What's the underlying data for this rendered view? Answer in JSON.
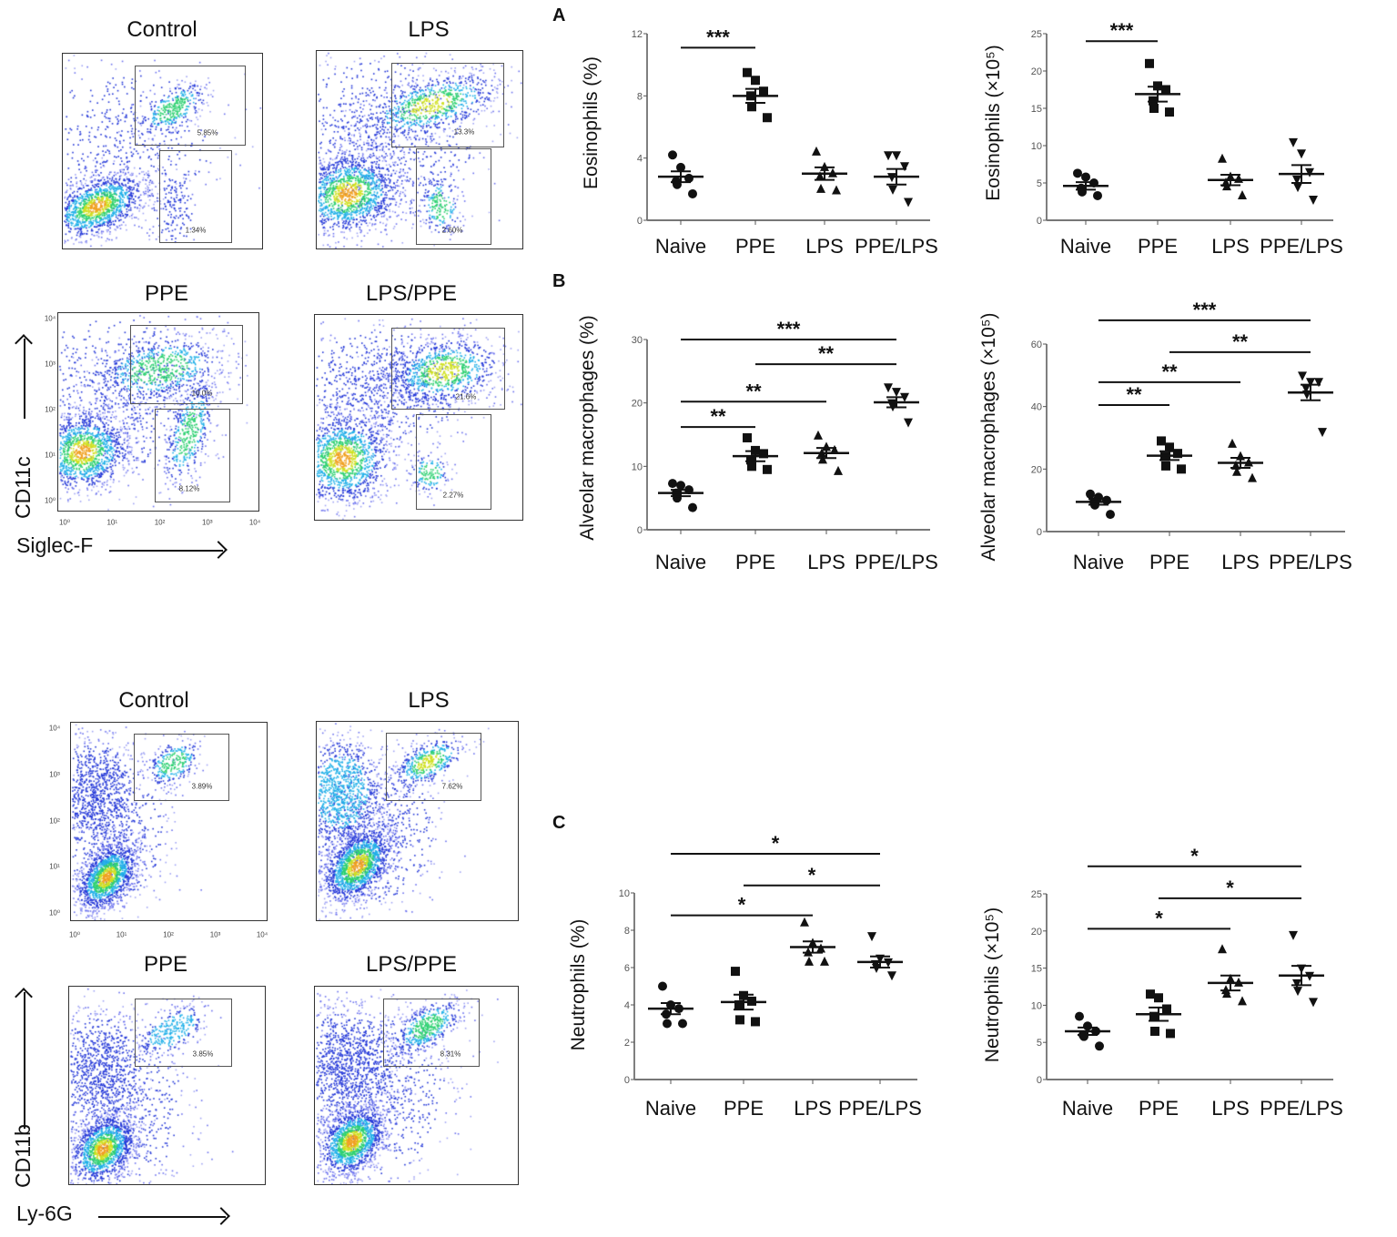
{
  "flow_top": {
    "panels": [
      {
        "title": "Control",
        "gates": [
          "5.85%",
          "1.34%"
        ]
      },
      {
        "title": "LPS",
        "gates": [
          "13.3%",
          "2.60%"
        ]
      },
      {
        "title": "PPE",
        "gates": [
          "10.0%",
          "8.12%"
        ]
      },
      {
        "title": "LPS/PPE",
        "gates": [
          "21.6%",
          "2.27%"
        ]
      }
    ],
    "y_axis_label": "CD11c",
    "x_axis_label": "Siglec-F",
    "x_ticks": [
      "10⁰",
      "10¹",
      "10²",
      "10³",
      "10⁴"
    ],
    "y_ticks": [
      "10⁴",
      "10³",
      "10²",
      "10¹",
      "10⁰"
    ]
  },
  "flow_bottom": {
    "panels": [
      {
        "title": "Control",
        "gates": [
          "3.89%"
        ]
      },
      {
        "title": "LPS",
        "gates": [
          "7.62%"
        ]
      },
      {
        "title": "PPE",
        "gates": [
          "3.85%"
        ]
      },
      {
        "title": "LPS/PPE",
        "gates": [
          "8.31%"
        ]
      }
    ],
    "y_axis_label": "CD11b",
    "x_axis_label": "Ly-6G",
    "x_ticks": [
      "10⁰",
      "10¹",
      "10²",
      "10³",
      "10⁴"
    ],
    "y_ticks": [
      "10⁴",
      "10³",
      "10²",
      "10¹",
      "10⁰"
    ]
  },
  "panel_letters": [
    "A",
    "B",
    "C"
  ],
  "chart_data": [
    {
      "type": "scatter",
      "panel": "A",
      "ylabel": "Eosinophils (%)",
      "ylim": [
        0,
        12
      ],
      "yticks": [
        "0",
        "4",
        "8",
        "12"
      ],
      "categories": [
        "Naive",
        "PPE",
        "LPS",
        "PPE/LPS"
      ],
      "markers": [
        "circle",
        "square",
        "triangle-up",
        "triangle-down"
      ],
      "groups": [
        {
          "points": [
            4.2,
            3.4,
            2.7,
            2.5,
            2.3,
            1.7
          ],
          "mean": 2.8,
          "sem": 0.35
        },
        {
          "points": [
            9.5,
            9.0,
            8.3,
            8.0,
            7.3,
            6.6
          ],
          "mean": 8.0,
          "sem": 0.45
        },
        {
          "points": [
            4.4,
            3.4,
            3.0,
            2.8,
            2.0,
            1.9
          ],
          "mean": 3.0,
          "sem": 0.4
        },
        {
          "points": [
            4.2,
            4.2,
            3.5,
            2.8,
            2.0,
            1.2
          ],
          "mean": 2.8,
          "sem": 0.5
        }
      ],
      "significance": [
        {
          "from": 0,
          "to": 1,
          "y": 11.1,
          "label": "***"
        }
      ]
    },
    {
      "type": "scatter",
      "panel": "A",
      "ylabel": "Eosinophils (×10⁵)",
      "ylim": [
        0,
        25
      ],
      "yticks": [
        "0",
        "5",
        "10",
        "15",
        "20",
        "25"
      ],
      "categories": [
        "Naive",
        "PPE",
        "LPS",
        "PPE/LPS"
      ],
      "markers": [
        "circle",
        "square",
        "triangle-up",
        "triangle-down"
      ],
      "groups": [
        {
          "points": [
            6.3,
            5.8,
            5.0,
            4.3,
            3.8,
            3.3
          ],
          "mean": 4.6,
          "sem": 0.5
        },
        {
          "points": [
            21.0,
            18.0,
            17.5,
            16.0,
            15.0,
            14.5
          ],
          "mean": 16.9,
          "sem": 1.0
        },
        {
          "points": [
            8.2,
            5.8,
            5.5,
            5.0,
            4.5,
            3.3
          ],
          "mean": 5.4,
          "sem": 0.7
        },
        {
          "points": [
            10.5,
            9.0,
            6.5,
            5.5,
            4.5,
            2.8
          ],
          "mean": 6.2,
          "sem": 1.2
        }
      ],
      "significance": [
        {
          "from": 0,
          "to": 1,
          "y": 24.0,
          "label": "***"
        }
      ]
    },
    {
      "type": "scatter",
      "panel": "B",
      "ylabel": "Alveolar macrophages (%)",
      "ylim": [
        0,
        30
      ],
      "yticks": [
        "0",
        "10",
        "20",
        "30"
      ],
      "categories": [
        "Naive",
        "PPE",
        "LPS",
        "PPE/LPS"
      ],
      "markers": [
        "circle",
        "square",
        "triangle-up",
        "triangle-down"
      ],
      "groups": [
        {
          "points": [
            7.3,
            7.0,
            6.3,
            5.8,
            5.0,
            3.5
          ],
          "mean": 5.8,
          "sem": 0.5
        },
        {
          "points": [
            14.5,
            12.5,
            12.0,
            11.0,
            10.0,
            9.5
          ],
          "mean": 11.6,
          "sem": 0.8
        },
        {
          "points": [
            14.8,
            13.0,
            12.5,
            12.0,
            11.0,
            9.2
          ],
          "mean": 12.1,
          "sem": 0.8
        },
        {
          "points": [
            22.5,
            21.8,
            21.0,
            20.0,
            19.5,
            17.0
          ],
          "mean": 20.1,
          "sem": 0.8
        }
      ],
      "significance": [
        {
          "from": 0,
          "to": 3,
          "y": 30.0,
          "label": "***"
        },
        {
          "from": 1,
          "to": 3,
          "y": 26.1,
          "label": "**"
        },
        {
          "from": 0,
          "to": 2,
          "y": 20.2,
          "label": "**"
        },
        {
          "from": 0,
          "to": 1,
          "y": 16.2,
          "label": "**"
        }
      ]
    },
    {
      "type": "scatter",
      "panel": "B",
      "ylabel": "Alveolar macrophages (×10⁵)",
      "ylim": [
        0,
        60
      ],
      "yticks": [
        "0",
        "20",
        "40",
        "60"
      ],
      "categories": [
        "Naive",
        "PPE",
        "LPS",
        "PPE/LPS"
      ],
      "markers": [
        "circle",
        "square",
        "triangle-up",
        "triangle-down"
      ],
      "groups": [
        {
          "points": [
            12.0,
            11.0,
            10.0,
            9.5,
            8.5,
            5.5
          ],
          "mean": 9.5,
          "sem": 0.9
        },
        {
          "points": [
            29.0,
            27.0,
            25.0,
            24.0,
            21.0,
            20.0
          ],
          "mean": 24.3,
          "sem": 1.4
        },
        {
          "points": [
            28.0,
            24.0,
            22.0,
            21.0,
            19.0,
            17.0
          ],
          "mean": 22.0,
          "sem": 1.6
        },
        {
          "points": [
            50.0,
            48.0,
            48.0,
            46.0,
            44.0,
            32.0
          ],
          "mean": 44.5,
          "sem": 2.5
        }
      ],
      "significance": [
        {
          "from": 0,
          "to": 3,
          "y": 67.6,
          "label": "***"
        },
        {
          "from": 1,
          "to": 3,
          "y": 57.4,
          "label": "**"
        },
        {
          "from": 0,
          "to": 2,
          "y": 47.8,
          "label": "**"
        },
        {
          "from": 0,
          "to": 1,
          "y": 40.5,
          "label": "**"
        }
      ]
    },
    {
      "type": "scatter",
      "panel": "C",
      "ylabel": "Neutrophils (%)",
      "ylim": [
        0,
        10
      ],
      "yticks": [
        "0",
        "2",
        "4",
        "6",
        "8",
        "10"
      ],
      "categories": [
        "Naive",
        "PPE",
        "LPS",
        "PPE/LPS"
      ],
      "markers": [
        "circle",
        "square",
        "triangle-up",
        "triangle-down"
      ],
      "groups": [
        {
          "points": [
            5.0,
            4.0,
            3.8,
            3.5,
            3.0,
            3.0
          ],
          "mean": 3.8,
          "sem": 0.3
        },
        {
          "points": [
            5.8,
            4.5,
            4.2,
            4.0,
            3.2,
            3.1
          ],
          "mean": 4.15,
          "sem": 0.4
        },
        {
          "points": [
            8.4,
            7.3,
            7.0,
            6.8,
            6.3,
            6.3
          ],
          "mean": 7.1,
          "sem": 0.3
        },
        {
          "points": [
            7.7,
            6.5,
            6.3,
            6.2,
            6.0,
            5.6
          ],
          "mean": 6.3,
          "sem": 0.3
        }
      ],
      "significance": [
        {
          "from": 0,
          "to": 3,
          "y": 12.1,
          "label": "*"
        },
        {
          "from": 1,
          "to": 3,
          "y": 10.4,
          "label": "*"
        },
        {
          "from": 0,
          "to": 2,
          "y": 8.8,
          "label": "*"
        }
      ]
    },
    {
      "type": "scatter",
      "panel": "C",
      "ylabel": "Neutrophils (×10⁵)",
      "ylim": [
        0,
        25
      ],
      "yticks": [
        "0",
        "5",
        "10",
        "15",
        "20",
        "25"
      ],
      "categories": [
        "Naive",
        "PPE",
        "LPS",
        "PPE/LPS"
      ],
      "markers": [
        "circle",
        "square",
        "triangle-up",
        "triangle-down"
      ],
      "groups": [
        {
          "points": [
            8.5,
            7.2,
            6.5,
            6.0,
            5.8,
            4.5
          ],
          "mean": 6.5,
          "sem": 0.5
        },
        {
          "points": [
            11.5,
            11.0,
            9.5,
            8.5,
            6.5,
            6.2
          ],
          "mean": 8.8,
          "sem": 0.9
        },
        {
          "points": [
            17.5,
            13.5,
            13.0,
            12.0,
            11.5,
            10.5
          ],
          "mean": 13.0,
          "sem": 1.0
        },
        {
          "points": [
            19.5,
            15.0,
            14.0,
            13.0,
            12.0,
            10.5
          ],
          "mean": 14.0,
          "sem": 1.3
        }
      ],
      "significance": [
        {
          "from": 0,
          "to": 3,
          "y": 28.7,
          "label": "*"
        },
        {
          "from": 1,
          "to": 3,
          "y": 24.4,
          "label": "*"
        },
        {
          "from": 0,
          "to": 2,
          "y": 20.3,
          "label": "*"
        }
      ]
    }
  ]
}
